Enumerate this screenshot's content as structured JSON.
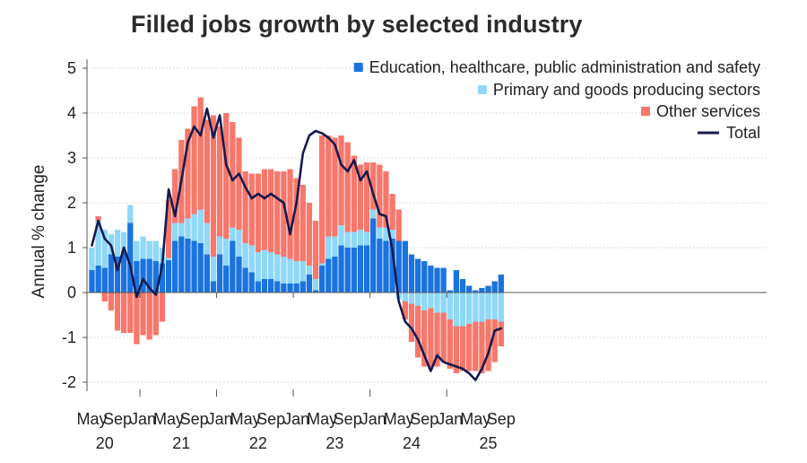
{
  "chart_data": {
    "type": "bar",
    "title": "Filled jobs growth by selected industry",
    "ylabel": "Annual % change",
    "xlabel": "",
    "ylim": [
      -2.2,
      5.2
    ],
    "yticks": [
      "5",
      "4",
      "3",
      "2",
      "1",
      "0",
      "-1",
      "-2"
    ],
    "ytick_values": [
      5,
      4,
      3,
      2,
      1,
      0,
      -1,
      -2
    ],
    "stacked": true,
    "grid": true,
    "legend_position": "top-right",
    "months": [
      "2020-05",
      "2020-06",
      "2020-07",
      "2020-08",
      "2020-09",
      "2020-10",
      "2020-11",
      "2020-12",
      "2021-01",
      "2021-02",
      "2021-03",
      "2021-04",
      "2021-05",
      "2021-06",
      "2021-07",
      "2021-08",
      "2021-09",
      "2021-10",
      "2021-11",
      "2021-12",
      "2022-01",
      "2022-02",
      "2022-03",
      "2022-04",
      "2022-05",
      "2022-06",
      "2022-07",
      "2022-08",
      "2022-09",
      "2022-10",
      "2022-11",
      "2022-12",
      "2023-01",
      "2023-02",
      "2023-03",
      "2023-04",
      "2023-05",
      "2023-06",
      "2023-07",
      "2023-08",
      "2023-09",
      "2023-10",
      "2023-11",
      "2023-12",
      "2024-01",
      "2024-02",
      "2024-03",
      "2024-04",
      "2024-05",
      "2024-06",
      "2024-07",
      "2024-08",
      "2024-09",
      "2024-10",
      "2024-11",
      "2024-12",
      "2025-01",
      "2025-02",
      "2025-03",
      "2025-04",
      "2025-05",
      "2025-06",
      "2025-07",
      "2025-08",
      "2025-09"
    ],
    "x_tick_labels": [
      {
        "month": "2020-05",
        "label": "May"
      },
      {
        "month": "2020-09",
        "label": "Sep"
      },
      {
        "month": "2021-01",
        "label": "Jan"
      },
      {
        "month": "2021-05",
        "label": "May"
      },
      {
        "month": "2021-09",
        "label": "Sep"
      },
      {
        "month": "2022-01",
        "label": "Jan"
      },
      {
        "month": "2022-05",
        "label": "May"
      },
      {
        "month": "2022-09",
        "label": "Sep"
      },
      {
        "month": "2023-01",
        "label": "Jan"
      },
      {
        "month": "2023-05",
        "label": "May"
      },
      {
        "month": "2023-09",
        "label": "Sep"
      },
      {
        "month": "2024-01",
        "label": "Jan"
      },
      {
        "month": "2024-05",
        "label": "May"
      },
      {
        "month": "2024-09",
        "label": "Sep"
      },
      {
        "month": "2025-01",
        "label": "Jan"
      },
      {
        "month": "2025-05",
        "label": "May"
      },
      {
        "month": "2025-09",
        "label": "Sep"
      }
    ],
    "year_labels": [
      {
        "month": "2020-07",
        "label": "20"
      },
      {
        "month": "2021-07",
        "label": "21"
      },
      {
        "month": "2022-07",
        "label": "22"
      },
      {
        "month": "2023-07",
        "label": "23"
      },
      {
        "month": "2024-07",
        "label": "24"
      },
      {
        "month": "2025-07",
        "label": "25"
      }
    ],
    "series": [
      {
        "name": "Education, healthcare, public administration and safety",
        "kind": "bar",
        "color": "#1a73e0",
        "values": [
          0.5,
          0.6,
          0.55,
          0.85,
          0.8,
          0.9,
          1.55,
          0.7,
          0.75,
          0.75,
          0.7,
          0.65,
          0.72,
          1.15,
          1.25,
          1.2,
          1.15,
          1.1,
          0.85,
          0.25,
          0.85,
          0.6,
          1.15,
          0.8,
          0.55,
          0.45,
          0.25,
          0.3,
          0.3,
          0.25,
          0.2,
          0.2,
          0.2,
          0.25,
          0.4,
          0.05,
          0.6,
          0.75,
          0.8,
          1.05,
          1.0,
          1.0,
          1.05,
          1.05,
          1.65,
          1.2,
          1.15,
          1.2,
          1.15,
          1.15,
          0.85,
          0.75,
          0.7,
          0.6,
          0.55,
          0.55,
          0.05,
          0.5,
          0.3,
          0.15,
          0.05,
          0.1,
          0.15,
          0.25,
          0.4
        ]
      },
      {
        "name": "Primary and goods producing sectors",
        "kind": "bar",
        "color": "#8fd8f8",
        "values": [
          0.5,
          1.0,
          0.85,
          0.45,
          0.6,
          0.45,
          0.4,
          0.45,
          0.5,
          0.4,
          0.45,
          0.35,
          0.05,
          0.4,
          0.3,
          0.45,
          0.6,
          0.75,
          0.7,
          0.55,
          0.4,
          0.6,
          0.3,
          0.6,
          0.55,
          0.6,
          0.65,
          0.65,
          0.6,
          0.6,
          0.6,
          0.55,
          0.5,
          0.45,
          0.2,
          0.25,
          0.05,
          0.5,
          0.45,
          0.45,
          0.35,
          0.35,
          0.35,
          0.3,
          0.2,
          0.25,
          0.3,
          0.2,
          -0.15,
          -0.2,
          -0.25,
          -0.3,
          -0.4,
          -0.35,
          -0.45,
          -0.45,
          -0.6,
          -0.75,
          -0.75,
          -0.7,
          -0.65,
          -0.65,
          -0.6,
          -0.6,
          -0.65
        ]
      },
      {
        "name": "Other services",
        "kind": "bar",
        "color": "#f7776b",
        "values": [
          0.0,
          0.1,
          -0.2,
          -0.4,
          -0.85,
          -0.9,
          -0.9,
          -1.15,
          -0.95,
          -1.05,
          -0.95,
          -0.65,
          1.3,
          1.2,
          1.85,
          2.0,
          2.4,
          2.5,
          2.3,
          3.15,
          2.45,
          2.8,
          2.35,
          2.05,
          1.6,
          1.6,
          1.75,
          1.8,
          1.85,
          1.85,
          1.9,
          2.0,
          1.85,
          1.7,
          1.4,
          1.3,
          2.85,
          2.25,
          2.2,
          2.0,
          2.0,
          1.7,
          1.45,
          1.55,
          1.05,
          1.4,
          1.25,
          0.8,
          0.7,
          -0.4,
          -0.85,
          -1.15,
          -1.25,
          -1.35,
          -1.2,
          -1.1,
          -1.1,
          -1.05,
          -1.0,
          -1.05,
          -1.1,
          -1.15,
          -1.15,
          -0.95,
          -0.55
        ]
      },
      {
        "name": "Total",
        "kind": "line",
        "color": "#161a4d",
        "values": [
          1.05,
          1.6,
          1.2,
          1.05,
          0.5,
          1.0,
          0.6,
          -0.1,
          0.3,
          0.1,
          -0.05,
          0.6,
          2.3,
          1.7,
          2.5,
          3.35,
          3.7,
          3.5,
          4.1,
          3.45,
          3.95,
          2.85,
          2.5,
          2.65,
          2.35,
          2.1,
          2.2,
          2.1,
          2.2,
          2.1,
          2.0,
          1.3,
          2.0,
          3.1,
          3.5,
          3.6,
          3.55,
          3.45,
          3.3,
          2.85,
          2.7,
          2.95,
          2.5,
          2.7,
          2.2,
          1.75,
          1.7,
          0.95,
          -0.2,
          -0.65,
          -0.8,
          -1.05,
          -1.4,
          -1.75,
          -1.4,
          -1.55,
          -1.6,
          -1.65,
          -1.7,
          -1.8,
          -1.95,
          -1.7,
          -1.35,
          -0.85,
          -0.8
        ]
      }
    ]
  }
}
